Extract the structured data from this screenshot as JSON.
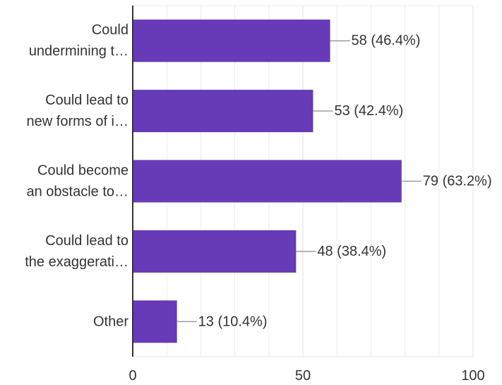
{
  "chart_data": {
    "type": "bar",
    "orientation": "horizontal",
    "categories": [
      [
        "Could",
        "undermining t…"
      ],
      [
        "Could lead to",
        "new forms of i…"
      ],
      [
        "Could become",
        "an obstacle to…"
      ],
      [
        "Could lead to",
        "the exaggerati…"
      ],
      [
        "Other"
      ]
    ],
    "values": [
      58,
      53,
      79,
      48,
      13
    ],
    "data_labels": [
      "58 (46.4%)",
      "53 (42.4%)",
      "79 (63.2%)",
      "48 (38.4%)",
      "13 (10.4%)"
    ],
    "xlim": [
      0,
      100
    ],
    "x_ticks": [
      0,
      50,
      100
    ],
    "x_tick_labels": [
      "0",
      "50",
      "100"
    ],
    "grid": true,
    "bar_color": "#673ab7",
    "grid_color": "#e6e6e6",
    "axis_color": "#333333",
    "leader_color": "#9e9e9e"
  }
}
